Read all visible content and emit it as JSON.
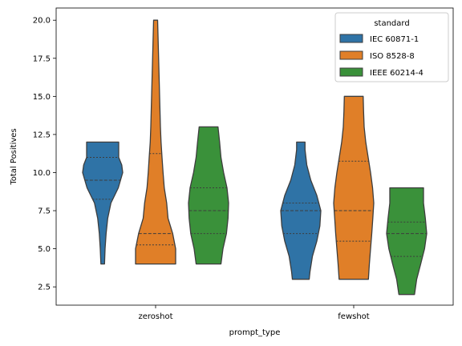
{
  "chart_data": {
    "type": "violin",
    "title": "",
    "xlabel": "prompt_type",
    "ylabel": "Total Positives",
    "categories": [
      "zeroshot",
      "fewshot"
    ],
    "ylim": [
      1.3,
      20.8
    ],
    "yticks": [
      2.5,
      5.0,
      7.5,
      10.0,
      12.5,
      15.0,
      17.5,
      20.0
    ],
    "ytick_labels": [
      "2.5",
      "5.0",
      "7.5",
      "10.0",
      "12.5",
      "15.0",
      "17.5",
      "20.0"
    ],
    "inner": "quartile",
    "grid": false,
    "legend": {
      "title": "standard",
      "placement": "top-right"
    },
    "series": [
      {
        "name": "IEC 60871-1",
        "color": "#2f73a6",
        "violins": [
          {
            "category": "zeroshot",
            "quartiles": [
              8.25,
              9.5,
              11.0
            ],
            "profile": [
              [
                4.0,
                0.09
              ],
              [
                5.0,
                0.12
              ],
              [
                6.0,
                0.17
              ],
              [
                7.0,
                0.25
              ],
              [
                8.0,
                0.41
              ],
              [
                9.0,
                0.78
              ],
              [
                10.0,
                1.0
              ],
              [
                10.5,
                0.95
              ],
              [
                11.0,
                0.8
              ],
              [
                11.5,
                0.8
              ],
              [
                12.0,
                0.8
              ]
            ]
          },
          {
            "category": "fewshot",
            "quartiles": [
              6.0,
              7.5,
              8.0
            ],
            "profile": [
              [
                3.0,
                0.42
              ],
              [
                3.5,
                0.46
              ],
              [
                4.5,
                0.58
              ],
              [
                5.5,
                0.8
              ],
              [
                6.5,
                0.95
              ],
              [
                7.5,
                1.0
              ],
              [
                8.5,
                0.8
              ],
              [
                9.5,
                0.5
              ],
              [
                10.5,
                0.3
              ],
              [
                11.5,
                0.21
              ],
              [
                12.0,
                0.21
              ]
            ]
          }
        ]
      },
      {
        "name": "ISO 8528-8",
        "color": "#e07f28",
        "violins": [
          {
            "category": "zeroshot",
            "quartiles": [
              5.25,
              6.0,
              11.25
            ],
            "profile": [
              [
                4.0,
                1.0
              ],
              [
                5.0,
                1.0
              ],
              [
                6.0,
                0.85
              ],
              [
                7.0,
                0.62
              ],
              [
                8.0,
                0.55
              ],
              [
                9.0,
                0.43
              ],
              [
                10.0,
                0.37
              ],
              [
                11.0,
                0.32
              ],
              [
                12.0,
                0.27
              ],
              [
                13.0,
                0.24
              ],
              [
                14.0,
                0.22
              ],
              [
                15.0,
                0.2
              ],
              [
                16.0,
                0.18
              ],
              [
                17.0,
                0.16
              ],
              [
                18.0,
                0.14
              ],
              [
                19.0,
                0.12
              ],
              [
                20.0,
                0.1
              ]
            ]
          },
          {
            "category": "fewshot",
            "quartiles": [
              5.5,
              7.5,
              10.75
            ],
            "profile": [
              [
                3.0,
                0.73
              ],
              [
                4.0,
                0.78
              ],
              [
                5.0,
                0.84
              ],
              [
                6.0,
                0.9
              ],
              [
                7.0,
                0.95
              ],
              [
                8.0,
                1.0
              ],
              [
                9.0,
                0.94
              ],
              [
                10.0,
                0.84
              ],
              [
                11.0,
                0.72
              ],
              [
                12.0,
                0.6
              ],
              [
                13.0,
                0.52
              ],
              [
                14.0,
                0.49
              ],
              [
                15.0,
                0.47
              ]
            ]
          }
        ]
      },
      {
        "name": "IEEE 60214-4",
        "color": "#3a913a",
        "violins": [
          {
            "category": "zeroshot",
            "quartiles": [
              6.0,
              7.5,
              9.0
            ],
            "profile": [
              [
                4.0,
                0.62
              ],
              [
                5.0,
                0.72
              ],
              [
                6.0,
                0.89
              ],
              [
                7.0,
                0.97
              ],
              [
                8.0,
                1.0
              ],
              [
                9.0,
                0.92
              ],
              [
                10.0,
                0.75
              ],
              [
                11.0,
                0.62
              ],
              [
                12.0,
                0.55
              ],
              [
                13.0,
                0.47
              ]
            ]
          },
          {
            "category": "fewshot",
            "quartiles": [
              4.5,
              6.0,
              6.75
            ],
            "profile": [
              [
                2.0,
                0.39
              ],
              [
                3.0,
                0.5
              ],
              [
                4.0,
                0.7
              ],
              [
                5.0,
                0.89
              ],
              [
                6.0,
                1.0
              ],
              [
                7.0,
                0.93
              ],
              [
                8.0,
                0.84
              ],
              [
                9.0,
                0.84
              ]
            ]
          }
        ]
      }
    ]
  }
}
